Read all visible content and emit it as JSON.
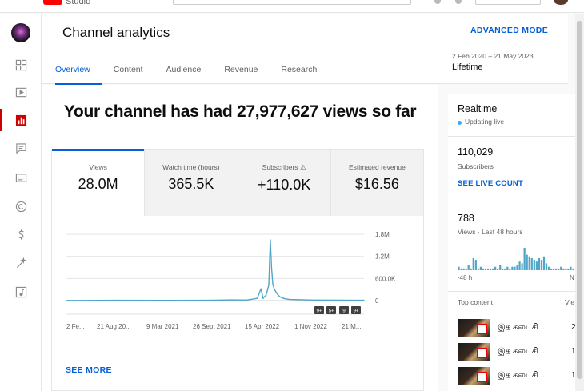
{
  "app": {
    "name": "Studio"
  },
  "header": {
    "title": "Channel analytics",
    "advanced_mode": "ADVANCED MODE",
    "date_range": "2 Feb 2020 – 21 May 2023",
    "date_label": "Lifetime",
    "tabs": [
      {
        "label": "Overview",
        "active": true
      },
      {
        "label": "Content",
        "active": false
      },
      {
        "label": "Audience",
        "active": false
      },
      {
        "label": "Revenue",
        "active": false
      },
      {
        "label": "Research",
        "active": false
      }
    ]
  },
  "sidebar": {
    "items": [
      {
        "icon": "dashboard-icon",
        "active": false
      },
      {
        "icon": "content-icon",
        "active": false
      },
      {
        "icon": "analytics-icon",
        "active": true
      },
      {
        "icon": "comments-icon",
        "active": false
      },
      {
        "icon": "subtitles-icon",
        "active": false
      },
      {
        "icon": "copyright-icon",
        "active": false
      },
      {
        "icon": "earn-icon",
        "active": false
      },
      {
        "icon": "customisation-icon",
        "active": false
      },
      {
        "icon": "audio-library-icon",
        "active": false
      }
    ]
  },
  "main": {
    "headline": "Your channel has had 27,977,627 views so far",
    "metrics": [
      {
        "label": "Views",
        "value": "28.0M",
        "warning": false
      },
      {
        "label": "Watch time (hours)",
        "value": "365.5K",
        "warning": false
      },
      {
        "label": "Subscribers",
        "value": "+110.0K",
        "warning": true
      },
      {
        "label": "Estimated revenue",
        "value": "$16.56",
        "warning": false
      }
    ],
    "see_more": "SEE MORE",
    "chart_markers": [
      "9+",
      "5+",
      "9",
      "9+"
    ]
  },
  "chart_data": {
    "type": "line",
    "title": "",
    "xlabel": "",
    "ylabel": "",
    "x_ticks": [
      "2 Fe...",
      "21 Aug 20...",
      "9 Mar 2021",
      "26 Sept 2021",
      "15 Apr 2022",
      "1 Nov 2022",
      "21 M..."
    ],
    "y_ticks": [
      "1.8M",
      "1.2M",
      "600.0K",
      "0"
    ],
    "ylim": [
      0,
      1800000
    ],
    "grid": true,
    "series": [
      {
        "color": "#4fa6c9",
        "points": [
          [
            "2 Feb 2020",
            5000
          ],
          [
            "21 Aug 2020",
            8000
          ],
          [
            "9 Mar 2021",
            6000
          ],
          [
            "26 Sept 2021",
            10000
          ],
          [
            "1 Dec 2021",
            20000
          ],
          [
            "1 Feb 2022",
            15000
          ],
          [
            "15 Mar 2022",
            60000
          ],
          [
            "30 Mar 2022",
            320000
          ],
          [
            "8 Apr 2022",
            60000
          ],
          [
            "20 Apr 2022",
            150000
          ],
          [
            "1 May 2022",
            420000
          ],
          [
            "7 May 2022",
            1650000
          ],
          [
            "12 May 2022",
            900000
          ],
          [
            "17 May 2022",
            450000
          ],
          [
            "23 May 2022",
            320000
          ],
          [
            "30 May 2022",
            230000
          ],
          [
            "6 Jun 2022",
            160000
          ],
          [
            "14 Jun 2022",
            110000
          ],
          [
            "22 Jun 2022",
            80000
          ],
          [
            "5 Jul 2022",
            50000
          ],
          [
            "25 Jul 2022",
            30000
          ],
          [
            "1 Nov 2022",
            15000
          ],
          [
            "21 May 2023",
            8000
          ]
        ]
      }
    ]
  },
  "realtime": {
    "title": "Realtime",
    "status": "Updating live",
    "subscribers": "110,029",
    "subscribers_label": "Subscribers",
    "see_live_count": "SEE LIVE COUNT",
    "views": "788",
    "views_label": "Views · Last 48 hours",
    "axis_left": "-48 h",
    "axis_right": "N",
    "top_content_label": "Top content",
    "views_col_label": "Vie",
    "bars": [
      2,
      1,
      1,
      1,
      3,
      1,
      7,
      6,
      1,
      2,
      1,
      1,
      1,
      1,
      1,
      2,
      1,
      3,
      1,
      1,
      2,
      1,
      2,
      2,
      3,
      5,
      4,
      13,
      9,
      8,
      7,
      6,
      5,
      7,
      6,
      8,
      4,
      2,
      1,
      1,
      1,
      1,
      2,
      1,
      1,
      1,
      2,
      1
    ],
    "top_content": [
      {
        "title": "இத கடைசி ...",
        "count": "2"
      },
      {
        "title": "இத கடைசி ...",
        "count": "1"
      },
      {
        "title": "இத கடைசி ...",
        "count": "1"
      }
    ]
  }
}
